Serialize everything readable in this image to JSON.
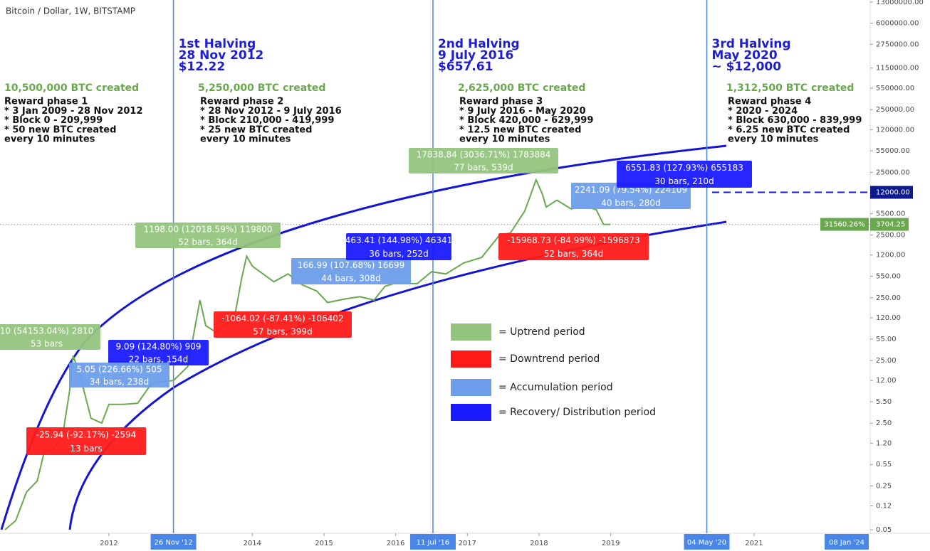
{
  "chart_data": {
    "type": "line",
    "title": "Bitcoin / Dollar, 1W, BITSTAMP",
    "log_y": true,
    "color": "#6aa84f",
    "xlim": [
      2010.48,
      2022.62
    ],
    "ylim": [
      0.044,
      14000000
    ],
    "xticks": [
      2012,
      2014,
      2015,
      2016,
      2017,
      2018,
      2019,
      2021
    ],
    "yticks": [
      {
        "value": 13000000,
        "label": "13000000.00"
      },
      {
        "value": 6000000,
        "label": "6000000.00"
      },
      {
        "value": 2750000,
        "label": "2750000.00"
      },
      {
        "value": 1150000,
        "label": "1150000.00"
      },
      {
        "value": 550000,
        "label": "550000.00"
      },
      {
        "value": 250000,
        "label": "250000.00"
      },
      {
        "value": 120000,
        "label": "120000.00"
      },
      {
        "value": 55000,
        "label": "55000.00"
      },
      {
        "value": 25000,
        "label": "25000.00"
      },
      {
        "value": 5500,
        "label": "5500.00"
      },
      {
        "value": 2500,
        "label": "2500.00"
      },
      {
        "value": 1200,
        "label": "1200.00"
      },
      {
        "value": 550,
        "label": "550.00"
      },
      {
        "value": 250,
        "label": "250.00"
      },
      {
        "value": 120,
        "label": "120.00"
      },
      {
        "value": 55,
        "label": "55.00"
      },
      {
        "value": 25,
        "label": "25.00"
      },
      {
        "value": 12,
        "label": "12.00"
      },
      {
        "value": 5.5,
        "label": "5.50"
      },
      {
        "value": 2.5,
        "label": "2.50"
      },
      {
        "value": 1.2,
        "label": "1.20"
      },
      {
        "value": 0.55,
        "label": "0.55"
      },
      {
        "value": 0.25,
        "label": "0.25"
      },
      {
        "value": 0.12,
        "label": "0.12"
      },
      {
        "value": 0.05,
        "label": "0.05"
      }
    ],
    "x": [
      2010.55,
      2010.7,
      2010.85,
      2011.0,
      2011.1,
      2011.2,
      2011.35,
      2011.45,
      2011.5,
      2011.6,
      2011.75,
      2011.9,
      2012.0,
      2012.2,
      2012.4,
      2012.6,
      2012.9,
      2013.1,
      2013.27,
      2013.35,
      2013.5,
      2013.75,
      2013.85,
      2013.92,
      2014.0,
      2014.15,
      2014.3,
      2014.5,
      2014.7,
      2014.9,
      2015.05,
      2015.3,
      2015.5,
      2015.7,
      2015.85,
      2016.0,
      2016.3,
      2016.5,
      2016.7,
      2016.95,
      2017.2,
      2017.45,
      2017.6,
      2017.8,
      2017.96,
      2018.05,
      2018.1,
      2018.25,
      2018.45,
      2018.6,
      2018.8,
      2018.9,
      2019.0
    ],
    "values": [
      0.05,
      0.07,
      0.2,
      0.3,
      0.9,
      0.9,
      1.5,
      8,
      30,
      14,
      3,
      2.5,
      5,
      5,
      5.2,
      11,
      12,
      20,
      230,
      90,
      70,
      120,
      500,
      1150,
      800,
      600,
      450,
      600,
      400,
      320,
      210,
      240,
      260,
      230,
      380,
      430,
      420,
      650,
      600,
      900,
      1100,
      2500,
      2700,
      6000,
      19000,
      11000,
      7000,
      9000,
      6500,
      7500,
      6300,
      3700,
      3704.25
    ],
    "level": {
      "value": 12000,
      "label": "12000.00"
    },
    "last_price": {
      "value": 3704.25,
      "label": "3704.25"
    },
    "last_change": {
      "value": 31560.26,
      "label": "31560.26%"
    },
    "halvings": [
      {
        "x": 2012.9,
        "label": "26 Nov '12",
        "heading": [
          "1st Halving",
          "28 Nov 2012",
          "$12.22"
        ]
      },
      {
        "x": 2016.52,
        "label": "11 Jul '16",
        "heading": [
          "2nd Halving",
          "9 July 2016",
          "$657.61"
        ]
      },
      {
        "x": 2020.34,
        "label": "04 May '20",
        "heading": [
          "3rd Halving",
          "May 2020",
          "~ $12,000"
        ]
      }
    ],
    "future_marker": "08 Jan '24",
    "phases": [
      {
        "created": "10,500,000 BTC created",
        "lines": [
          "Reward phase 1",
          "* 3 Jan 2009 - 28 Nov 2012",
          "* Block 0 - 209,999",
          "* 50 new BTC created",
          "every 10 minutes"
        ]
      },
      {
        "created": "5,250,000 BTC created",
        "lines": [
          "Reward phase 2",
          "* 28 Nov 2012 - 9 July 2016",
          "* Block 210,000 - 419,999",
          "* 25 new BTC created",
          "every 10 minutes"
        ]
      },
      {
        "created": "2,625,000 BTC created",
        "lines": [
          "Reward phase 3",
          "* 9 July 2016 - May 2020",
          "* Block 420,000 - 629,999",
          "* 12.5 new BTC created",
          "every 10 minutes"
        ]
      },
      {
        "created": "1,312,500 BTC created",
        "lines": [
          "Reward phase 4",
          "* 2020 - 2024",
          "* Block 630,000 - 839,999",
          "* 6.25 new BTC created",
          "every 10 minutes"
        ]
      }
    ],
    "annotations": [
      {
        "color": "#93c47d",
        "lines": [
          "1198.00 (12018.59%) 119800",
          "52 bars, 364d"
        ]
      },
      {
        "color": "#ff1a1a",
        "lines": [
          "-1064.02 (-87.41%) -106402",
          "57 bars, 399d"
        ]
      },
      {
        "color": "#1a1aff",
        "lines": [
          "9.09 (124.80%) 909",
          "22 bars, 154d"
        ]
      },
      {
        "color": "#6d9eeb",
        "lines": [
          "5.05 (226.66%) 505",
          "34 bars, 238d"
        ]
      },
      {
        "color": "#93c47d",
        "lines": [
          "10 (54153.04%) 2810",
          "53 bars"
        ]
      },
      {
        "color": "#ff1a1a",
        "lines": [
          "-25.94 (-92.17%) -2594",
          "13 bars"
        ]
      },
      {
        "color": "#6d9eeb",
        "lines": [
          "166.99 (107.68%) 16699",
          "44 bars, 308d"
        ]
      },
      {
        "color": "#1a1aff",
        "lines": [
          "463.41 (144.98%) 46341",
          "36 bars, 252d"
        ]
      },
      {
        "color": "#93c47d",
        "lines": [
          "17838.84 (3036.71%) 1783884",
          "77 bars, 539d"
        ]
      },
      {
        "color": "#ff1a1a",
        "lines": [
          "-15968.73 (-84.99%) -1596873",
          "52 bars, 364d"
        ]
      },
      {
        "color": "#6d9eeb",
        "lines": [
          "2241.09 (79.54%) 224109",
          "40 bars, 280d"
        ]
      },
      {
        "color": "#1a1aff",
        "lines": [
          "6551.83 (127.93%) 655183",
          "30 bars, 210d"
        ]
      }
    ],
    "legend": [
      {
        "label": "= Uptrend period",
        "color": "#93c47d"
      },
      {
        "label": "= Downtrend period",
        "color": "#ff1a1a"
      },
      {
        "label": "= Accumulation period",
        "color": "#6d9eeb"
      },
      {
        "label": "= Recovery/ Distribution period",
        "color": "#1a1aff"
      }
    ]
  }
}
